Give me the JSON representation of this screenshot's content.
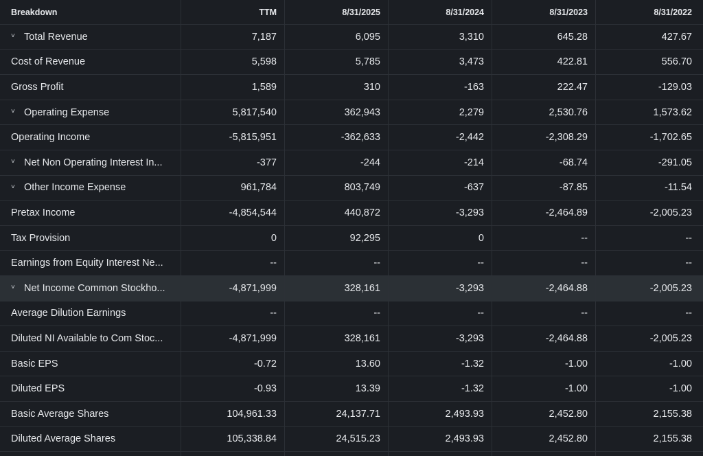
{
  "header": {
    "breakdown": "Breakdown",
    "columns": [
      "TTM",
      "8/31/2025",
      "8/31/2024",
      "8/31/2023",
      "8/31/2022"
    ]
  },
  "rows": [
    {
      "label": "Total Revenue",
      "expandable": true,
      "values": [
        "7,187",
        "6,095",
        "3,310",
        "645.28",
        "427.67"
      ]
    },
    {
      "label": "Cost of Revenue",
      "expandable": false,
      "values": [
        "5,598",
        "5,785",
        "3,473",
        "422.81",
        "556.70"
      ]
    },
    {
      "label": "Gross Profit",
      "expandable": false,
      "values": [
        "1,589",
        "310",
        "-163",
        "222.47",
        "-129.03"
      ]
    },
    {
      "label": "Operating Expense",
      "expandable": true,
      "values": [
        "5,817,540",
        "362,943",
        "2,279",
        "2,530.76",
        "1,573.62"
      ]
    },
    {
      "label": "Operating Income",
      "expandable": false,
      "values": [
        "-5,815,951",
        "-362,633",
        "-2,442",
        "-2,308.29",
        "-1,702.65"
      ]
    },
    {
      "label": "Net Non Operating Interest In...",
      "expandable": true,
      "values": [
        "-377",
        "-244",
        "-214",
        "-68.74",
        "-291.05"
      ]
    },
    {
      "label": "Other Income Expense",
      "expandable": true,
      "values": [
        "961,784",
        "803,749",
        "-637",
        "-87.85",
        "-11.54"
      ]
    },
    {
      "label": "Pretax Income",
      "expandable": false,
      "values": [
        "-4,854,544",
        "440,872",
        "-3,293",
        "-2,464.89",
        "-2,005.23"
      ]
    },
    {
      "label": "Tax Provision",
      "expandable": false,
      "values": [
        "0",
        "92,295",
        "0",
        "--",
        "--"
      ]
    },
    {
      "label": "Earnings from Equity Interest Ne...",
      "expandable": false,
      "values": [
        "--",
        "--",
        "--",
        "--",
        "--"
      ]
    },
    {
      "label": "Net Income Common Stockho...",
      "expandable": true,
      "highlighted": true,
      "values": [
        "-4,871,999",
        "328,161",
        "-3,293",
        "-2,464.88",
        "-2,005.23"
      ]
    },
    {
      "label": "Average Dilution Earnings",
      "expandable": false,
      "values": [
        "--",
        "--",
        "--",
        "--",
        "--"
      ]
    },
    {
      "label": "Diluted NI Available to Com Stoc...",
      "expandable": false,
      "values": [
        "-4,871,999",
        "328,161",
        "-3,293",
        "-2,464.88",
        "-2,005.23"
      ]
    },
    {
      "label": "Basic EPS",
      "expandable": false,
      "values": [
        "-0.72",
        "13.60",
        "-1.32",
        "-1.00",
        "-1.00"
      ]
    },
    {
      "label": "Diluted EPS",
      "expandable": false,
      "values": [
        "-0.93",
        "13.39",
        "-1.32",
        "-1.00",
        "-1.00"
      ]
    },
    {
      "label": "Basic Average Shares",
      "expandable": false,
      "values": [
        "104,961.33",
        "24,137.71",
        "2,493.93",
        "2,452.80",
        "2,155.38"
      ]
    },
    {
      "label": "Diluted Average Shares",
      "expandable": false,
      "values": [
        "105,338.84",
        "24,515.23",
        "2,493.93",
        "2,452.80",
        "2,155.38"
      ]
    }
  ],
  "icons": {
    "expand": "chevron-down-icon"
  },
  "colors": {
    "background": "#1b1e23",
    "highlight_row": "#2b3035",
    "text": "#e6e8eb"
  }
}
